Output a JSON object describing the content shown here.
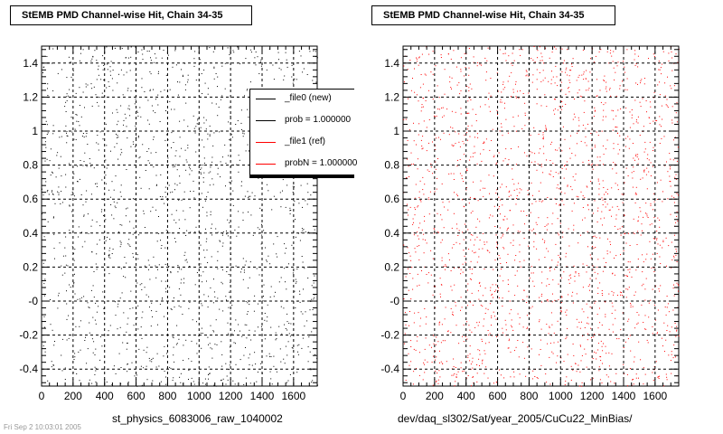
{
  "chart_data": [
    {
      "type": "scatter",
      "title": "StEMB PMD Channel-wise Hit, Chain 34-35",
      "xlabel": "st_physics_6083006_raw_1040002",
      "xlim": [
        0,
        1750
      ],
      "ylim": [
        -0.5,
        1.5
      ],
      "xticks": [
        0,
        200,
        400,
        600,
        800,
        1000,
        1200,
        1400,
        1600
      ],
      "xtick_labels": [
        "0",
        "200",
        "400",
        "600",
        "800",
        "1000",
        "1200",
        "1400",
        "1600"
      ],
      "yticks": [
        -0.4,
        -0.2,
        0,
        0.2,
        0.4,
        0.6,
        0.8,
        1,
        1.2,
        1.4
      ],
      "ytick_labels": [
        "-0.4",
        "-0.2",
        "-0",
        "0.2",
        "0.4",
        "0.6",
        "0.8",
        "1",
        "1.2",
        "1.4"
      ],
      "grid": true,
      "marker_color": "#000000",
      "legend": {
        "placement": "top-right",
        "entries": [
          {
            "label": "_file0 (new)",
            "color": "#000000"
          },
          {
            "label": "prob = 1.000000",
            "color": "#000000"
          },
          {
            "label": "_file1 (ref)",
            "color": "#ff0000"
          },
          {
            "label": "probN = 1.000000",
            "color": "#ff0000"
          }
        ]
      }
    },
    {
      "type": "scatter",
      "title": "StEMB PMD Channel-wise Hit, Chain 34-35",
      "xlabel": "dev/daq_sl302/Sat/year_2005/CuCu22_MinBias/",
      "xlim": [
        0,
        1750
      ],
      "ylim": [
        -0.5,
        1.5
      ],
      "xticks": [
        0,
        200,
        400,
        600,
        800,
        1000,
        1200,
        1400,
        1600
      ],
      "xtick_labels": [
        "0",
        "200",
        "400",
        "600",
        "800",
        "1000",
        "1200",
        "1400",
        "1600"
      ],
      "yticks": [
        -0.4,
        -0.2,
        0,
        0.2,
        0.4,
        0.6,
        0.8,
        1,
        1.2,
        1.4
      ],
      "ytick_labels": [
        "-0.4",
        "-0.2",
        "-0",
        "0.2",
        "0.4",
        "0.6",
        "0.8",
        "1",
        "1.2",
        "1.4"
      ],
      "grid": true,
      "marker_color": "#ff0000"
    }
  ],
  "footer": "Fri Sep 2 10:03:01 2005"
}
